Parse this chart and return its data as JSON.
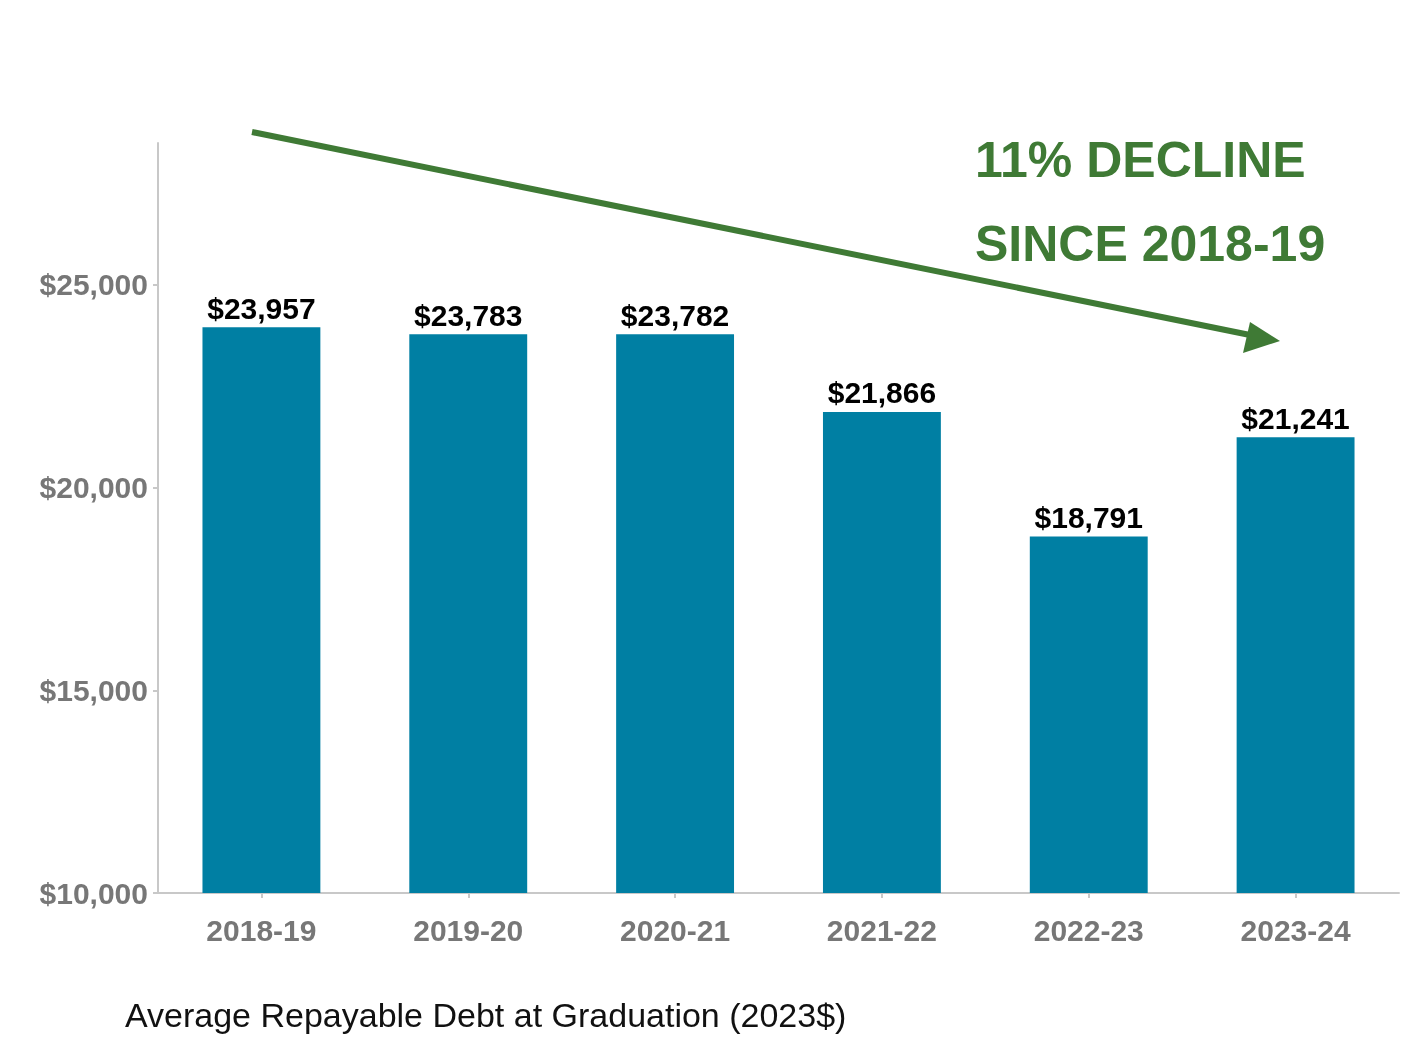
{
  "chart_data": {
    "type": "bar",
    "xlabel": "Average Repayable Debt at Graduation (2023$)",
    "categories": [
      "2018-19",
      "2019-20",
      "2020-21",
      "2021-22",
      "2022-23",
      "2023-24"
    ],
    "values": [
      23957,
      23783,
      23782,
      21866,
      18791,
      21241
    ],
    "value_labels": [
      "$23,957",
      "$23,783",
      "$23,782",
      "$21,866",
      "$18,791",
      "$21,241"
    ],
    "color": "#007fa3",
    "ylim": [
      10000,
      28500
    ],
    "yticks": [
      {
        "value": 10000,
        "label": "$10,000"
      },
      {
        "value": 15000,
        "label": "$15,000"
      },
      {
        "value": 20000,
        "label": "$20,000"
      },
      {
        "value": 25000,
        "label": "$25,000"
      }
    ],
    "grid": false,
    "annotations": [
      "11% DECLINE SINCE 2018-19"
    ]
  }
}
